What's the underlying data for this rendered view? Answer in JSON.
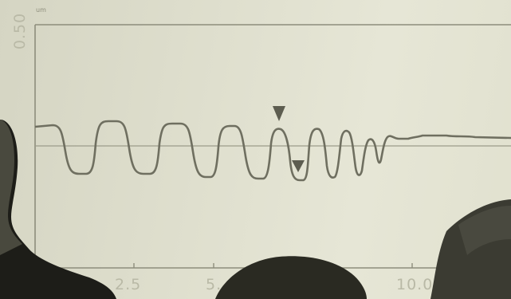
{
  "plot": {
    "y_unit": "um",
    "y_tick_top": "0.50",
    "x_ticks": [
      "2.5",
      "5.",
      "10.0"
    ]
  },
  "colors": {
    "background": "#dddccb",
    "trace": "#6f6f60",
    "axis": "#8d8d7c",
    "person_dark": "#1a1a16"
  }
}
